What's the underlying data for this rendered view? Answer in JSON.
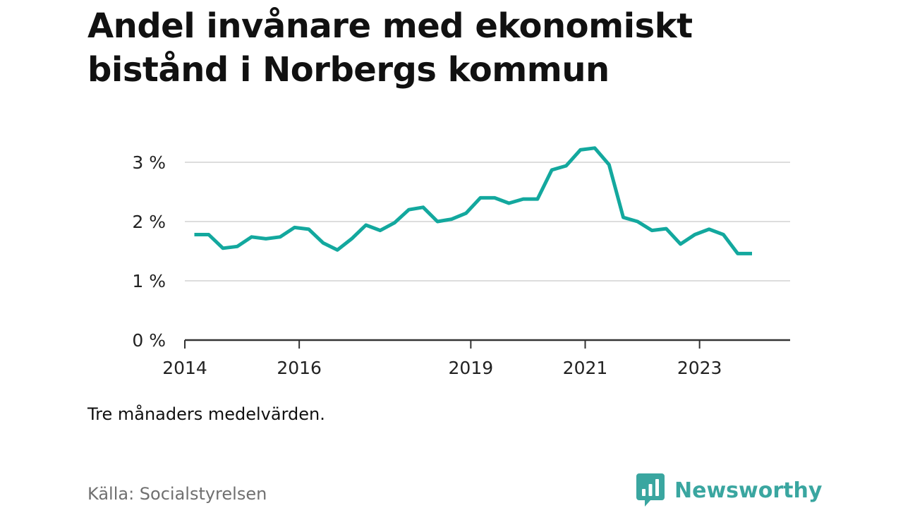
{
  "title": "Andel invånare med ekonomiskt bistånd i Norbergs kommun",
  "note": "Tre månaders medelvärden.",
  "source": "Källa: Socialstyrelsen",
  "brand": {
    "name": "Newsworthy",
    "color": "#3aa6a0",
    "icon": "bar-chart-speech-bubble-icon"
  },
  "colors": {
    "line": "#13a89e",
    "grid": "#dddddd",
    "axis": "#333333"
  },
  "chart_data": {
    "type": "line",
    "title": "Andel invånare med ekonomiskt bistånd i Norbergs kommun",
    "xlabel": "",
    "ylabel": "",
    "y_unit": "%",
    "ylim": [
      0,
      3.3
    ],
    "yticks": [
      0,
      1,
      2,
      3
    ],
    "ytick_labels": [
      "0 %",
      "1 %",
      "2 %",
      "3 %"
    ],
    "xlim": [
      "2014-01",
      "2024-08"
    ],
    "xticks": [
      "2014-01",
      "2016-01",
      "2019-01",
      "2021-01",
      "2023-01"
    ],
    "xtick_labels": [
      "2014",
      "2016",
      "2019",
      "2021",
      "2023"
    ],
    "grid": true,
    "legend": "none",
    "series": [
      {
        "x": [
          "2014-03",
          "2014-06",
          "2014-09",
          "2014-12",
          "2015-03",
          "2015-06",
          "2015-09",
          "2015-12",
          "2016-03",
          "2016-06",
          "2016-09",
          "2016-12",
          "2017-03",
          "2017-06",
          "2017-09",
          "2017-12",
          "2018-03",
          "2018-06",
          "2018-09",
          "2018-12",
          "2019-03",
          "2019-06",
          "2019-09",
          "2019-12",
          "2020-03",
          "2020-06",
          "2020-09",
          "2020-12",
          "2021-03",
          "2021-06",
          "2021-09",
          "2021-12",
          "2022-03",
          "2022-06",
          "2022-09",
          "2022-12",
          "2023-03",
          "2023-06",
          "2023-09",
          "2023-12"
        ],
        "values": [
          1.78,
          1.78,
          1.55,
          1.58,
          1.74,
          1.71,
          1.74,
          1.9,
          1.87,
          1.64,
          1.52,
          1.71,
          1.94,
          1.85,
          1.98,
          2.2,
          2.24,
          2.0,
          2.04,
          2.14,
          2.4,
          2.4,
          2.31,
          2.38,
          2.38,
          2.87,
          2.94,
          3.21,
          3.24,
          2.96,
          2.07,
          2.0,
          1.85,
          1.88,
          1.62,
          1.78,
          1.87,
          1.78,
          1.46,
          1.46
        ]
      }
    ]
  }
}
